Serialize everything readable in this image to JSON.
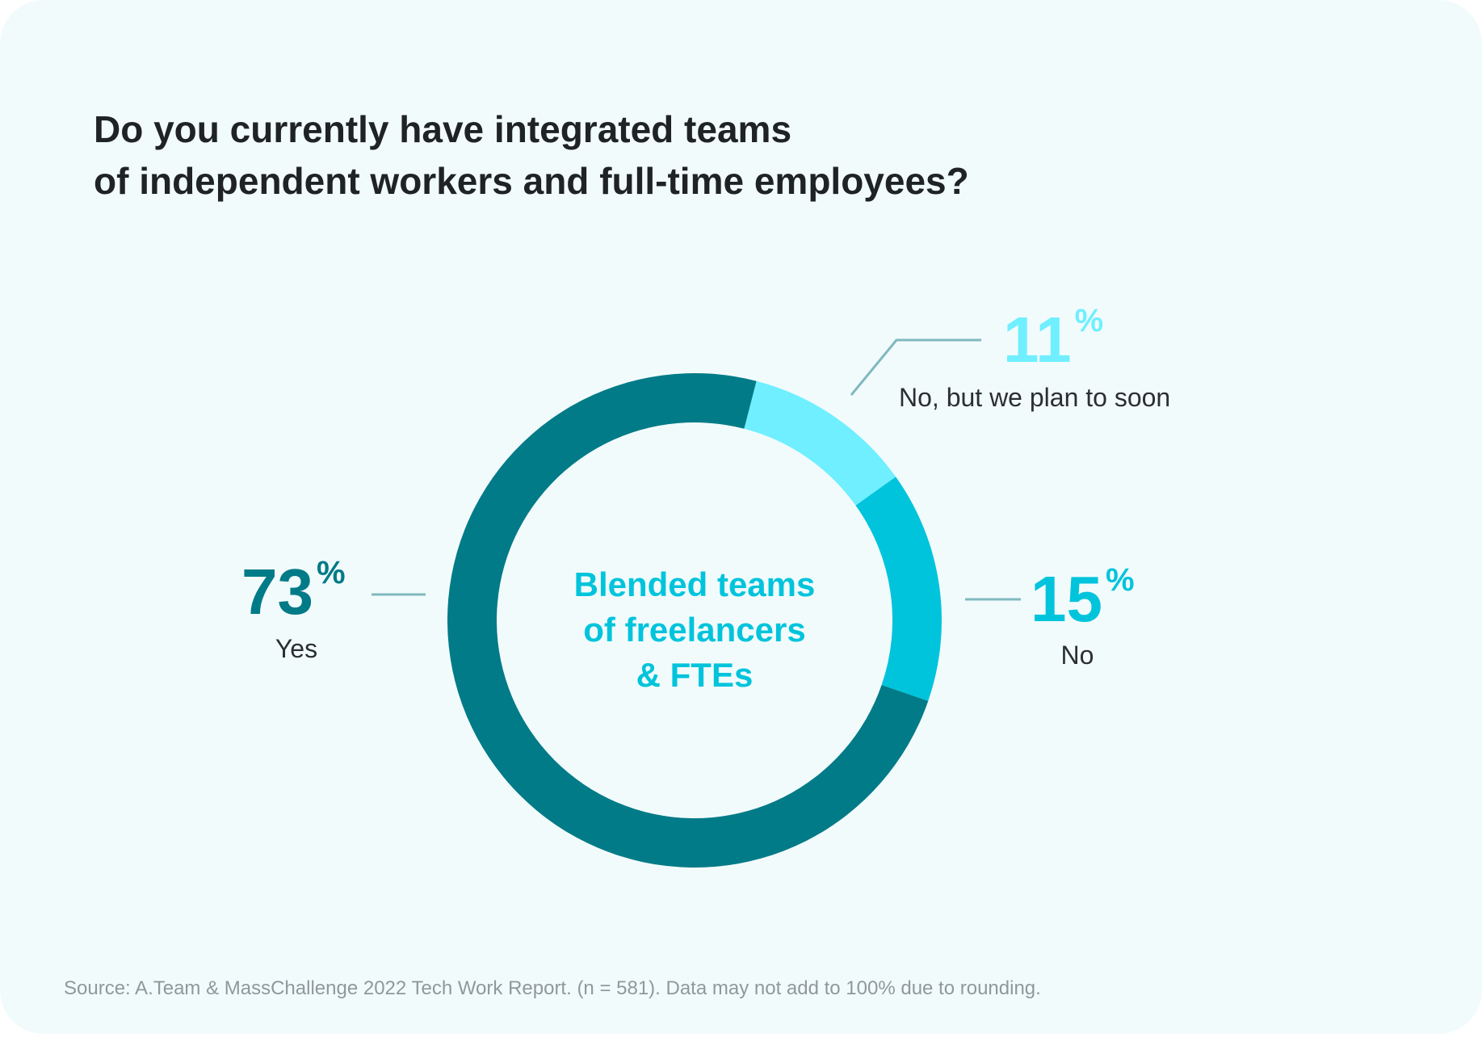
{
  "colors": {
    "background": "#f2fbfc",
    "yes": "#007b87",
    "no": "#00c4dc",
    "plan": "#6fefff",
    "leader": "#7fb9bf",
    "center_text": "#00c4dc",
    "title": "#1f2326",
    "source": "#8f989b"
  },
  "chart_data": {
    "type": "pie",
    "title": [
      "Do you currently have integrated teams",
      "of independent workers and full-time employees?"
    ],
    "center_label": [
      "Blended teams",
      "of freelancers",
      "& FTEs"
    ],
    "slices": [
      {
        "label": "No, but we plan to soon",
        "value": 11,
        "display": "11",
        "unit": "%",
        "color": "#6fefff"
      },
      {
        "label": "No",
        "value": 15,
        "display": "15",
        "unit": "%",
        "color": "#00c4dc"
      },
      {
        "label": "Yes",
        "value": 73,
        "display": "73",
        "unit": "%",
        "color": "#007b87"
      }
    ],
    "start_angle_deg": 14.5,
    "source": "Source: A.Team & MassChallenge 2022 Tech Work Report. (n = 581). Data may not add to 100% due to rounding."
  }
}
